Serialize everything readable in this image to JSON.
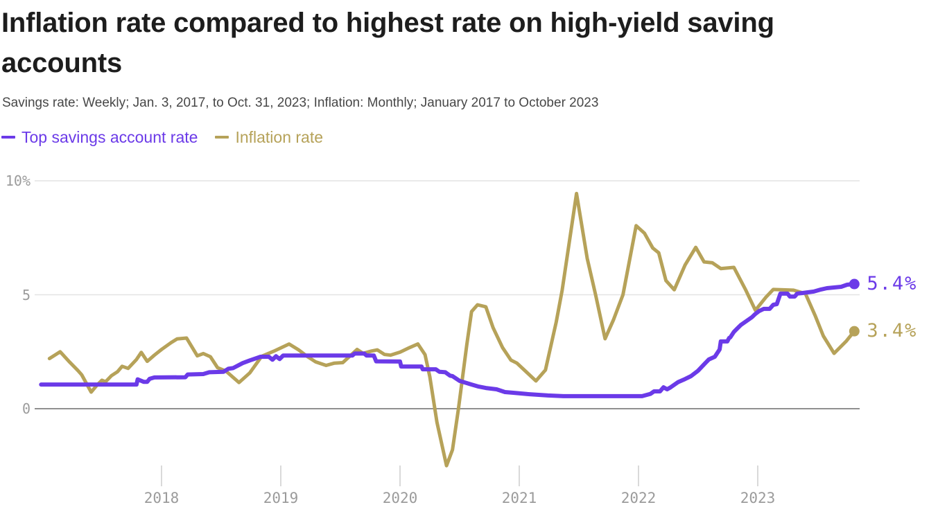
{
  "header": {
    "title_line1": "Inflation rate compared to highest rate on high-yield saving",
    "title_line2": "accounts",
    "subtitle": "Savings rate: Weekly; Jan. 3, 2017, to Oct. 31, 2023; Inflation: Monthly; January 2017 to October 2023"
  },
  "legend": {
    "items": [
      {
        "label": "Top savings account rate",
        "color": "#6b3ae8"
      },
      {
        "label": "Inflation rate",
        "color": "#b6a259"
      }
    ]
  },
  "chart_data": {
    "type": "line",
    "title": "Inflation rate compared to highest rate on high-yield saving accounts",
    "x_unit": "decimal years since January 2017 (0 = Jan 2017, 6.81 = Oct 2023)",
    "x_range": [
      -0.02,
      6.83
    ],
    "y_range": [
      -2.7,
      10
    ],
    "grid": "horizontal",
    "legend_position": "top-left",
    "x_ticks": [
      {
        "t": 1,
        "label": "2018"
      },
      {
        "t": 2,
        "label": "2019"
      },
      {
        "t": 3,
        "label": "2020"
      },
      {
        "t": 4,
        "label": "2021"
      },
      {
        "t": 5,
        "label": "2022"
      },
      {
        "t": 6,
        "label": "2023"
      }
    ],
    "y_ticks": [
      {
        "v": 10,
        "label": "10%"
      },
      {
        "v": 5,
        "label": "5"
      },
      {
        "v": 0,
        "label": "0"
      }
    ],
    "series": [
      {
        "name": "Top savings account rate",
        "color": "#6b3ae8",
        "end_label": "5.4%",
        "end_value": 5.4,
        "points": [
          [
            -0.01,
            1.06
          ],
          [
            0.79,
            1.06
          ],
          [
            0.8,
            1.29
          ],
          [
            0.85,
            1.18
          ],
          [
            0.88,
            1.18
          ],
          [
            0.9,
            1.31
          ],
          [
            0.94,
            1.37
          ],
          [
            1.2,
            1.38
          ],
          [
            1.22,
            1.5
          ],
          [
            1.35,
            1.52
          ],
          [
            1.4,
            1.6
          ],
          [
            1.52,
            1.62
          ],
          [
            1.56,
            1.75
          ],
          [
            1.6,
            1.78
          ],
          [
            1.68,
            2.0
          ],
          [
            1.74,
            2.12
          ],
          [
            1.83,
            2.28
          ],
          [
            1.9,
            2.28
          ],
          [
            1.93,
            2.15
          ],
          [
            1.96,
            2.3
          ],
          [
            1.99,
            2.18
          ],
          [
            2.02,
            2.33
          ],
          [
            2.6,
            2.33
          ],
          [
            2.62,
            2.42
          ],
          [
            2.7,
            2.42
          ],
          [
            2.72,
            2.33
          ],
          [
            2.78,
            2.33
          ],
          [
            2.8,
            2.08
          ],
          [
            3.0,
            2.07
          ],
          [
            3.01,
            1.85
          ],
          [
            3.18,
            1.85
          ],
          [
            3.19,
            1.73
          ],
          [
            3.3,
            1.73
          ],
          [
            3.33,
            1.62
          ],
          [
            3.38,
            1.6
          ],
          [
            3.42,
            1.45
          ],
          [
            3.44,
            1.43
          ],
          [
            3.5,
            1.22
          ],
          [
            3.6,
            1.06
          ],
          [
            3.66,
            0.97
          ],
          [
            3.72,
            0.91
          ],
          [
            3.81,
            0.85
          ],
          [
            3.88,
            0.73
          ],
          [
            3.95,
            0.7
          ],
          [
            4.07,
            0.64
          ],
          [
            4.24,
            0.58
          ],
          [
            4.37,
            0.55
          ],
          [
            5.03,
            0.55
          ],
          [
            5.1,
            0.65
          ],
          [
            5.13,
            0.76
          ],
          [
            5.18,
            0.76
          ],
          [
            5.21,
            0.94
          ],
          [
            5.24,
            0.85
          ],
          [
            5.27,
            0.94
          ],
          [
            5.33,
            1.16
          ],
          [
            5.39,
            1.3
          ],
          [
            5.44,
            1.43
          ],
          [
            5.5,
            1.67
          ],
          [
            5.56,
            2.0
          ],
          [
            5.59,
            2.16
          ],
          [
            5.64,
            2.28
          ],
          [
            5.68,
            2.6
          ],
          [
            5.69,
            2.95
          ],
          [
            5.745,
            2.95
          ],
          [
            5.76,
            3.1
          ],
          [
            5.77,
            3.13
          ],
          [
            5.8,
            3.37
          ],
          [
            5.83,
            3.53
          ],
          [
            5.86,
            3.68
          ],
          [
            5.95,
            4.01
          ],
          [
            5.98,
            4.16
          ],
          [
            6.01,
            4.28
          ],
          [
            6.05,
            4.38
          ],
          [
            6.1,
            4.38
          ],
          [
            6.13,
            4.56
          ],
          [
            6.16,
            4.59
          ],
          [
            6.19,
            5.05
          ],
          [
            6.25,
            5.05
          ],
          [
            6.27,
            4.92
          ],
          [
            6.31,
            4.92
          ],
          [
            6.33,
            5.05
          ],
          [
            6.38,
            5.08
          ],
          [
            6.47,
            5.14
          ],
          [
            6.53,
            5.23
          ],
          [
            6.58,
            5.29
          ],
          [
            6.64,
            5.32
          ],
          [
            6.7,
            5.35
          ],
          [
            6.75,
            5.44
          ],
          [
            6.81,
            5.47
          ]
        ]
      },
      {
        "name": "Inflation rate",
        "color": "#b6a259",
        "end_label": "3.4%",
        "end_value": 3.4,
        "points": [
          [
            0.06,
            2.2
          ],
          [
            0.15,
            2.5
          ],
          [
            0.23,
            2.04
          ],
          [
            0.3,
            1.67
          ],
          [
            0.33,
            1.49
          ],
          [
            0.41,
            0.73
          ],
          [
            0.46,
            1.04
          ],
          [
            0.5,
            1.25
          ],
          [
            0.53,
            1.18
          ],
          [
            0.58,
            1.45
          ],
          [
            0.63,
            1.62
          ],
          [
            0.67,
            1.86
          ],
          [
            0.72,
            1.77
          ],
          [
            0.79,
            2.16
          ],
          [
            0.83,
            2.47
          ],
          [
            0.88,
            2.08
          ],
          [
            0.94,
            2.35
          ],
          [
            1.0,
            2.6
          ],
          [
            1.08,
            2.9
          ],
          [
            1.13,
            3.06
          ],
          [
            1.21,
            3.1
          ],
          [
            1.3,
            2.32
          ],
          [
            1.35,
            2.42
          ],
          [
            1.41,
            2.28
          ],
          [
            1.47,
            1.8
          ],
          [
            1.54,
            1.65
          ],
          [
            1.65,
            1.15
          ],
          [
            1.74,
            1.57
          ],
          [
            1.84,
            2.3
          ],
          [
            1.94,
            2.52
          ],
          [
            2.07,
            2.84
          ],
          [
            2.15,
            2.58
          ],
          [
            2.22,
            2.3
          ],
          [
            2.29,
            2.06
          ],
          [
            2.38,
            1.9
          ],
          [
            2.45,
            2.0
          ],
          [
            2.52,
            2.02
          ],
          [
            2.64,
            2.6
          ],
          [
            2.69,
            2.43
          ],
          [
            2.76,
            2.53
          ],
          [
            2.81,
            2.58
          ],
          [
            2.87,
            2.38
          ],
          [
            2.92,
            2.35
          ],
          [
            3.0,
            2.48
          ],
          [
            3.08,
            2.68
          ],
          [
            3.15,
            2.84
          ],
          [
            3.21,
            2.37
          ],
          [
            3.25,
            1.4
          ],
          [
            3.31,
            -0.6
          ],
          [
            3.39,
            -2.5
          ],
          [
            3.44,
            -1.8
          ],
          [
            3.49,
            0.0
          ],
          [
            3.56,
            2.8
          ],
          [
            3.6,
            4.26
          ],
          [
            3.65,
            4.56
          ],
          [
            3.72,
            4.47
          ],
          [
            3.78,
            3.56
          ],
          [
            3.86,
            2.68
          ],
          [
            3.93,
            2.13
          ],
          [
            3.98,
            2.0
          ],
          [
            4.06,
            1.61
          ],
          [
            4.14,
            1.22
          ],
          [
            4.22,
            1.7
          ],
          [
            4.31,
            3.8
          ],
          [
            4.36,
            5.2
          ],
          [
            4.48,
            9.44
          ],
          [
            4.57,
            6.6
          ],
          [
            4.64,
            5.0
          ],
          [
            4.72,
            3.07
          ],
          [
            4.79,
            3.9
          ],
          [
            4.87,
            5.0
          ],
          [
            4.98,
            8.03
          ],
          [
            5.05,
            7.7
          ],
          [
            5.12,
            7.05
          ],
          [
            5.17,
            6.84
          ],
          [
            5.23,
            5.62
          ],
          [
            5.3,
            5.22
          ],
          [
            5.39,
            6.3
          ],
          [
            5.48,
            7.08
          ],
          [
            5.55,
            6.44
          ],
          [
            5.62,
            6.4
          ],
          [
            5.69,
            6.15
          ],
          [
            5.8,
            6.2
          ],
          [
            5.9,
            5.2
          ],
          [
            5.98,
            4.32
          ],
          [
            6.07,
            4.9
          ],
          [
            6.13,
            5.23
          ],
          [
            6.3,
            5.2
          ],
          [
            6.4,
            5.05
          ],
          [
            6.48,
            4.1
          ],
          [
            6.55,
            3.19
          ],
          [
            6.64,
            2.43
          ],
          [
            6.74,
            2.95
          ],
          [
            6.81,
            3.4
          ]
        ]
      }
    ]
  }
}
